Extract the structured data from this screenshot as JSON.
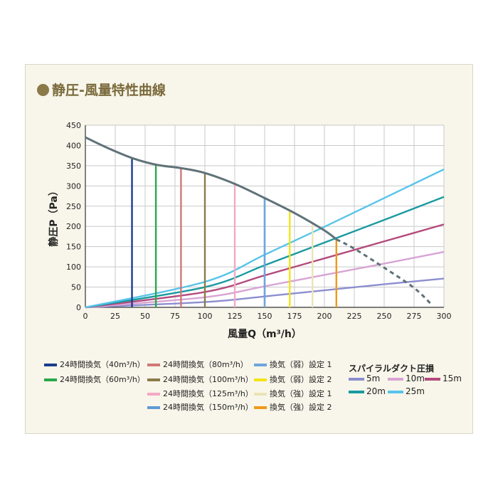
{
  "title": "静圧-風量特性曲線",
  "chart_data": {
    "type": "line",
    "xlabel": "風量Q（m³/h）",
    "ylabel": "静圧P（Pa）",
    "xlim": [
      0,
      300
    ],
    "ylim": [
      0,
      450
    ],
    "xticks": [
      "0",
      "25",
      "50",
      "75",
      "100",
      "125",
      "150",
      "175",
      "200",
      "225",
      "250",
      "275",
      "300"
    ],
    "yticks": [
      "0",
      "50",
      "100",
      "150",
      "200",
      "250",
      "300",
      "350",
      "400",
      "450"
    ],
    "grid": true,
    "fan_curve": {
      "color": "#5f7278",
      "points": [
        [
          0,
          420
        ],
        [
          20,
          392
        ],
        [
          40,
          368
        ],
        [
          60,
          352
        ],
        [
          80,
          344
        ],
        [
          100,
          332
        ],
        [
          125,
          305
        ],
        [
          150,
          270
        ],
        [
          175,
          233
        ],
        [
          200,
          190
        ],
        [
          210,
          168
        ]
      ],
      "extension": [
        [
          210,
          168
        ],
        [
          225,
          145
        ],
        [
          250,
          98
        ],
        [
          275,
          48
        ],
        [
          290,
          6
        ]
      ]
    },
    "operating_points": [
      {
        "label": "24時間換気（40m³/h）",
        "x": 39,
        "y": 368,
        "color": "#1d3c8f"
      },
      {
        "label": "24時間換気（60m³/h）",
        "x": 59,
        "y": 352,
        "color": "#2aa84a"
      },
      {
        "label": "24時間換気（80m³/h）",
        "x": 80,
        "y": 344,
        "color": "#d07878"
      },
      {
        "label": "24時間換気（100m³/h）",
        "x": 100,
        "y": 332,
        "color": "#8b7b4a"
      },
      {
        "label": "24時間換気（125m³/h）",
        "x": 125,
        "y": 305,
        "color": "#f4a8c4"
      },
      {
        "label": "24時間換気（150m³/h）",
        "x": 150,
        "y": 270,
        "color": "#5e9ad6"
      },
      {
        "label": "換気（弱）設定 1",
        "x": 150,
        "y": 270,
        "color": "#6fa6dc"
      },
      {
        "label": "換気（弱）設定 2",
        "x": 171,
        "y": 236,
        "color": "#f3e415"
      },
      {
        "label": "換気（強）設定 1",
        "x": 190,
        "y": 205,
        "color": "#ece3b7"
      },
      {
        "label": "換気（強）設定 2",
        "x": 210,
        "y": 168,
        "color": "#ef9a1a"
      }
    ],
    "spiral_title": "スパイラルダクト圧損",
    "series": [
      {
        "name": "5m",
        "color": "#8c8ed0",
        "values": [
          [
            0,
            0
          ],
          [
            100,
            13
          ],
          [
            150,
            27
          ],
          [
            200,
            42
          ],
          [
            250,
            57
          ],
          [
            300,
            71
          ]
        ]
      },
      {
        "name": "10m",
        "color": "#d8a4d4",
        "values": [
          [
            0,
            0
          ],
          [
            100,
            25
          ],
          [
            150,
            52
          ],
          [
            200,
            80
          ],
          [
            250,
            108
          ],
          [
            300,
            137
          ]
        ]
      },
      {
        "name": "15m",
        "color": "#b44b7d",
        "values": [
          [
            0,
            0
          ],
          [
            100,
            38
          ],
          [
            150,
            79
          ],
          [
            200,
            121
          ],
          [
            250,
            163
          ],
          [
            300,
            205
          ]
        ]
      },
      {
        "name": "20m",
        "color": "#1a9aa0",
        "values": [
          [
            0,
            0
          ],
          [
            100,
            50
          ],
          [
            150,
            104
          ],
          [
            200,
            160
          ],
          [
            250,
            216
          ],
          [
            300,
            273
          ]
        ]
      },
      {
        "name": "25m",
        "color": "#58c4ea",
        "values": [
          [
            0,
            0
          ],
          [
            100,
            63
          ],
          [
            150,
            130
          ],
          [
            200,
            199
          ],
          [
            250,
            270
          ],
          [
            300,
            341
          ]
        ]
      }
    ]
  }
}
